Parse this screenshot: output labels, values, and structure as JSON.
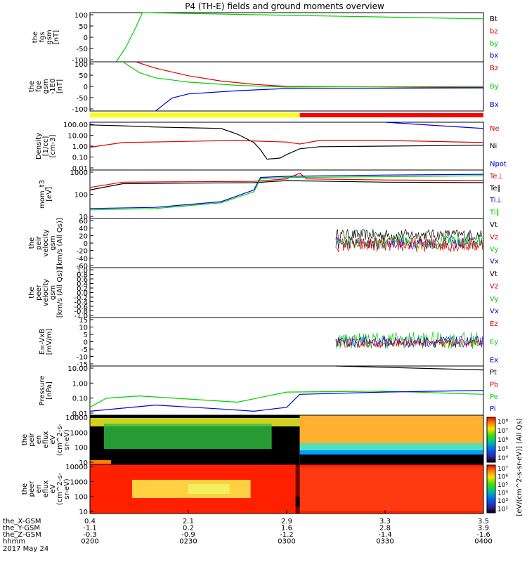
{
  "title": "P4 (TH-E) fields and ground moments overview",
  "date_label": "2017 May 24",
  "colors": {
    "black": "#000000",
    "red": "#e00000",
    "green": "#00d000",
    "blue": "#0000e0",
    "yellow": "#ffff00",
    "bar_red": "#ff0000"
  },
  "chart_data": [
    {
      "type": "line",
      "id": "fgs",
      "ylabel": [
        "the",
        "fgs",
        "gsm",
        "[nT]"
      ],
      "yticks": [
        "100",
        "50",
        "0",
        "-50",
        "-100"
      ],
      "ylim": [
        -100,
        100
      ],
      "legend": [
        {
          "label": "Bt",
          "color": "black"
        },
        {
          "label": "bz",
          "color": "red"
        },
        {
          "label": "by",
          "color": "green"
        },
        {
          "label": "bx",
          "color": "blue"
        }
      ],
      "series": [
        {
          "name": "by",
          "color": "green",
          "x": [
            "0208",
            "0211",
            "0214",
            "0216",
            "0400"
          ],
          "y": [
            -100,
            -40,
            40,
            100,
            75
          ]
        }
      ]
    },
    {
      "type": "line",
      "id": "fge",
      "ylabel": [
        "the",
        "fge",
        "gsm",
        "-1E0",
        "[nT]"
      ],
      "yticks": [
        "100",
        "50",
        "0",
        "-50",
        "-100"
      ],
      "ylim": [
        -120,
        110
      ],
      "legend": [
        {
          "label": "Bz",
          "color": "red"
        },
        {
          "label": "By",
          "color": "green"
        },
        {
          "label": "Bx",
          "color": "blue"
        }
      ],
      "series": [
        {
          "name": "Bz",
          "color": "red",
          "x": [
            "0214",
            "0220",
            "0230",
            "0240",
            "0250",
            "0300",
            "0400"
          ],
          "y": [
            110,
            80,
            45,
            20,
            5,
            -5,
            -10
          ]
        },
        {
          "name": "By",
          "color": "green",
          "x": [
            "0210",
            "0215",
            "0220",
            "0230",
            "0245",
            "0300",
            "0400"
          ],
          "y": [
            110,
            60,
            35,
            15,
            0,
            -8,
            -5
          ]
        },
        {
          "name": "Bx",
          "color": "blue",
          "x": [
            "0220",
            "0225",
            "0230",
            "0245",
            "0300",
            "0400"
          ],
          "y": [
            -120,
            -60,
            -40,
            -25,
            -15,
            -12
          ]
        }
      ]
    },
    {
      "type": "line",
      "id": "density",
      "ylabel": [
        "Density",
        "[1/cc]",
        "[cm-3]"
      ],
      "yticks": [
        "100.00",
        "10.00",
        "1.00",
        "0.10",
        "0.01"
      ],
      "ylog": true,
      "ylim": [
        0.01,
        100
      ],
      "legend": [
        {
          "label": "Ne",
          "color": "red"
        },
        {
          "label": "Ni",
          "color": "black"
        },
        {
          "label": "Npot",
          "color": "blue"
        }
      ],
      "series": [
        {
          "name": "Ni",
          "color": "black",
          "x": [
            "0200",
            "0210",
            "0220",
            "0240",
            "0245",
            "0250",
            "0252",
            "0254",
            "0258",
            "0300",
            "0304",
            "0310",
            "0330",
            "0400"
          ],
          "y": [
            60,
            50,
            40,
            30,
            10,
            2,
            0.5,
            0.08,
            0.1,
            0.2,
            0.6,
            0.9,
            1.0,
            1.2
          ]
        },
        {
          "name": "Ne",
          "color": "red",
          "x": [
            "0200",
            "0210",
            "0230",
            "0245",
            "0300",
            "0304",
            "0310",
            "0330",
            "0400"
          ],
          "y": [
            0.8,
            2,
            2.5,
            3,
            2.2,
            1.5,
            3,
            3,
            2
          ]
        },
        {
          "name": "Npot",
          "color": "blue",
          "x": [
            "0330",
            "0400"
          ],
          "y": [
            100,
            30
          ]
        }
      ]
    },
    {
      "type": "line",
      "id": "moments_t",
      "ylabel": [
        "mom_t3",
        "[eV]"
      ],
      "yticks": [
        "1000",
        "100",
        "10"
      ],
      "ylog": true,
      "ylim": [
        2,
        5000
      ],
      "legend": [
        {
          "label": "Te⊥",
          "color": "red"
        },
        {
          "label": "Te∥",
          "color": "black"
        },
        {
          "label": "Ti⊥",
          "color": "blue"
        },
        {
          "label": "Ti∥",
          "color": "green"
        }
      ],
      "series": [
        {
          "name": "Te⊥",
          "color": "red",
          "x": [
            "0200",
            "0210",
            "0230",
            "0250",
            "0300",
            "0304",
            "0306",
            "0330",
            "0400"
          ],
          "y": [
            300,
            700,
            750,
            800,
            1200,
            3000,
            1200,
            1000,
            900
          ]
        },
        {
          "name": "Te∥",
          "color": "black",
          "x": [
            "0200",
            "0210",
            "0230",
            "0250",
            "0300",
            "0330",
            "0400"
          ],
          "y": [
            200,
            550,
            600,
            650,
            900,
            700,
            650
          ]
        },
        {
          "name": "Ti⊥",
          "color": "blue",
          "x": [
            "0200",
            "0220",
            "0240",
            "0250",
            "0252",
            "0300",
            "0330",
            "0400"
          ],
          "y": [
            10,
            12,
            30,
            200,
            1500,
            1800,
            2200,
            2500
          ]
        },
        {
          "name": "Ti∥",
          "color": "green",
          "x": [
            "0200",
            "0220",
            "0240",
            "0250",
            "0252",
            "0300",
            "0330",
            "0400"
          ],
          "y": [
            8,
            10,
            25,
            150,
            1200,
            1500,
            1700,
            2000
          ]
        }
      ]
    },
    {
      "type": "line",
      "id": "peir_velocity",
      "ylabel": [
        "the",
        "peir",
        "velocity",
        "gsm",
        "[km/s (All Qs)]"
      ],
      "yticks": [
        "60",
        "40",
        "20",
        "0",
        "-20",
        "-40",
        "-60"
      ],
      "ylim": [
        -60,
        60
      ],
      "legend": [
        {
          "label": "Vt",
          "color": "black"
        },
        {
          "label": "Vz",
          "color": "red"
        },
        {
          "label": "Vy",
          "color": "green"
        },
        {
          "label": "Vx",
          "color": "blue"
        }
      ],
      "noisy": [
        {
          "name": "Vt",
          "color": "black",
          "start": "0315",
          "mean": 20,
          "amp": 14
        },
        {
          "name": "Vx",
          "color": "blue",
          "start": "0315",
          "mean": 0,
          "amp": 14
        },
        {
          "name": "Vy",
          "color": "green",
          "start": "0315",
          "mean": 2,
          "amp": 16
        },
        {
          "name": "Vz",
          "color": "red",
          "start": "0315",
          "mean": -4,
          "amp": 18
        }
      ]
    },
    {
      "type": "line",
      "id": "peer_velocity",
      "ylabel": [
        "the",
        "peer",
        "velocity",
        "gsm",
        "[km/s (All Qs)]"
      ],
      "yticks": [
        "1.0",
        "0.8",
        "0.6",
        "0.4",
        "0.2",
        "0.0",
        "-0.2",
        "-0.4",
        "-0.6",
        "-0.8",
        "-1.0"
      ],
      "ylim": [
        -1,
        1
      ],
      "legend": [
        {
          "label": "Vt",
          "color": "black"
        },
        {
          "label": "Vz",
          "color": "red"
        },
        {
          "label": "Vy",
          "color": "green"
        },
        {
          "label": "Vx",
          "color": "blue"
        }
      ],
      "series": []
    },
    {
      "type": "line",
      "id": "efield",
      "ylabel": [
        "E=-VxB",
        "[mV/m]"
      ],
      "yticks": [
        "15",
        "10",
        "5",
        "0",
        "-5",
        "-10",
        "-15"
      ],
      "ylim": [
        -17,
        17
      ],
      "legend": [
        {
          "label": "Ez",
          "color": "red"
        },
        {
          "label": "Ey",
          "color": "green"
        },
        {
          "label": "Ex",
          "color": "blue"
        }
      ],
      "noisy": [
        {
          "name": "Ey",
          "color": "green",
          "start": "0315",
          "mean": 1,
          "amp": 6
        },
        {
          "name": "Ex",
          "color": "blue",
          "start": "0315",
          "mean": 0,
          "amp": 4
        },
        {
          "name": "Ez",
          "color": "red",
          "start": "0315",
          "mean": -1,
          "amp": 3
        }
      ]
    },
    {
      "type": "line",
      "id": "pressure",
      "ylabel": [
        "Pressure",
        "[nPa]"
      ],
      "yticks": [
        "10.00",
        "1.00",
        "0.10",
        "0.01"
      ],
      "ylog": true,
      "ylim": [
        0.005,
        30
      ],
      "legend": [
        {
          "label": "Pt",
          "color": "black"
        },
        {
          "label": "Pb",
          "color": "red"
        },
        {
          "label": "Pe",
          "color": "green"
        },
        {
          "label": "Pi",
          "color": "blue"
        }
      ],
      "series": [
        {
          "name": "Pt",
          "color": "black",
          "x": [
            "0315",
            "0400"
          ],
          "y": [
            30,
            15
          ]
        },
        {
          "name": "Pe",
          "color": "green",
          "x": [
            "0200",
            "0205",
            "0215",
            "0245",
            "0300",
            "0330",
            "0400"
          ],
          "y": [
            0.02,
            0.1,
            0.15,
            0.05,
            0.3,
            0.35,
            0.2
          ]
        },
        {
          "name": "Pi",
          "color": "blue",
          "x": [
            "0200",
            "0220",
            "0240",
            "0250",
            "0300",
            "0304",
            "0330",
            "0400"
          ],
          "y": [
            0.01,
            0.03,
            0.015,
            0.01,
            0.02,
            0.2,
            0.3,
            0.4
          ]
        }
      ]
    },
    {
      "type": "heatmap",
      "id": "peir_eflux",
      "ylabel": [
        "the",
        "peir",
        "en",
        "eflux",
        "eV",
        "(cm^2-s-",
        "sr-eV)"
      ],
      "yticks": [
        "10000",
        "1000",
        "100",
        "10"
      ]
    },
    {
      "type": "heatmap",
      "id": "peer_eflux",
      "ylabel": [
        "the",
        "peer",
        "en",
        "eflux",
        "eV",
        "(cm^2-s-",
        "sr-eV)"
      ],
      "yticks": [
        "10000",
        "1000",
        "100",
        "10"
      ]
    }
  ],
  "colorbar_upper": {
    "ticks": [
      "10⁸",
      "10⁷",
      "10⁶",
      "10⁵",
      "10⁴"
    ]
  },
  "colorbar_lower": {
    "ticks": [
      "10⁷",
      "10⁶",
      "10⁵",
      "10⁴",
      "10³",
      "10²"
    ]
  },
  "colorbar_label": "[eV/(cm^2-s-sr-eV)] (All Qs)",
  "mode_bar": [
    {
      "start": "0200",
      "end": "0304",
      "color": "yellow"
    },
    {
      "start": "0304",
      "end": "0400",
      "color": "bar_red"
    }
  ],
  "xaxis": {
    "start": "0200",
    "end": "0400",
    "row_labels": [
      "the_X-GSM",
      "the_Y-GSM",
      "the_Z-GSM",
      "hhmm"
    ],
    "columns": [
      {
        "time": "0200",
        "vals": [
          "0.4",
          "-1.1",
          "-0.3",
          "0200"
        ]
      },
      {
        "time": "0230",
        "vals": [
          "2.1",
          "0.2",
          "-0.9",
          "0230"
        ]
      },
      {
        "time": "0300",
        "vals": [
          "2.9",
          "1.6",
          "-1.2",
          "0300"
        ]
      },
      {
        "time": "0330",
        "vals": [
          "3.3",
          "2.8",
          "-1.4",
          "0330"
        ]
      },
      {
        "time": "0400",
        "vals": [
          "3.5",
          "3.9",
          "-1.6",
          "0400"
        ]
      }
    ]
  }
}
